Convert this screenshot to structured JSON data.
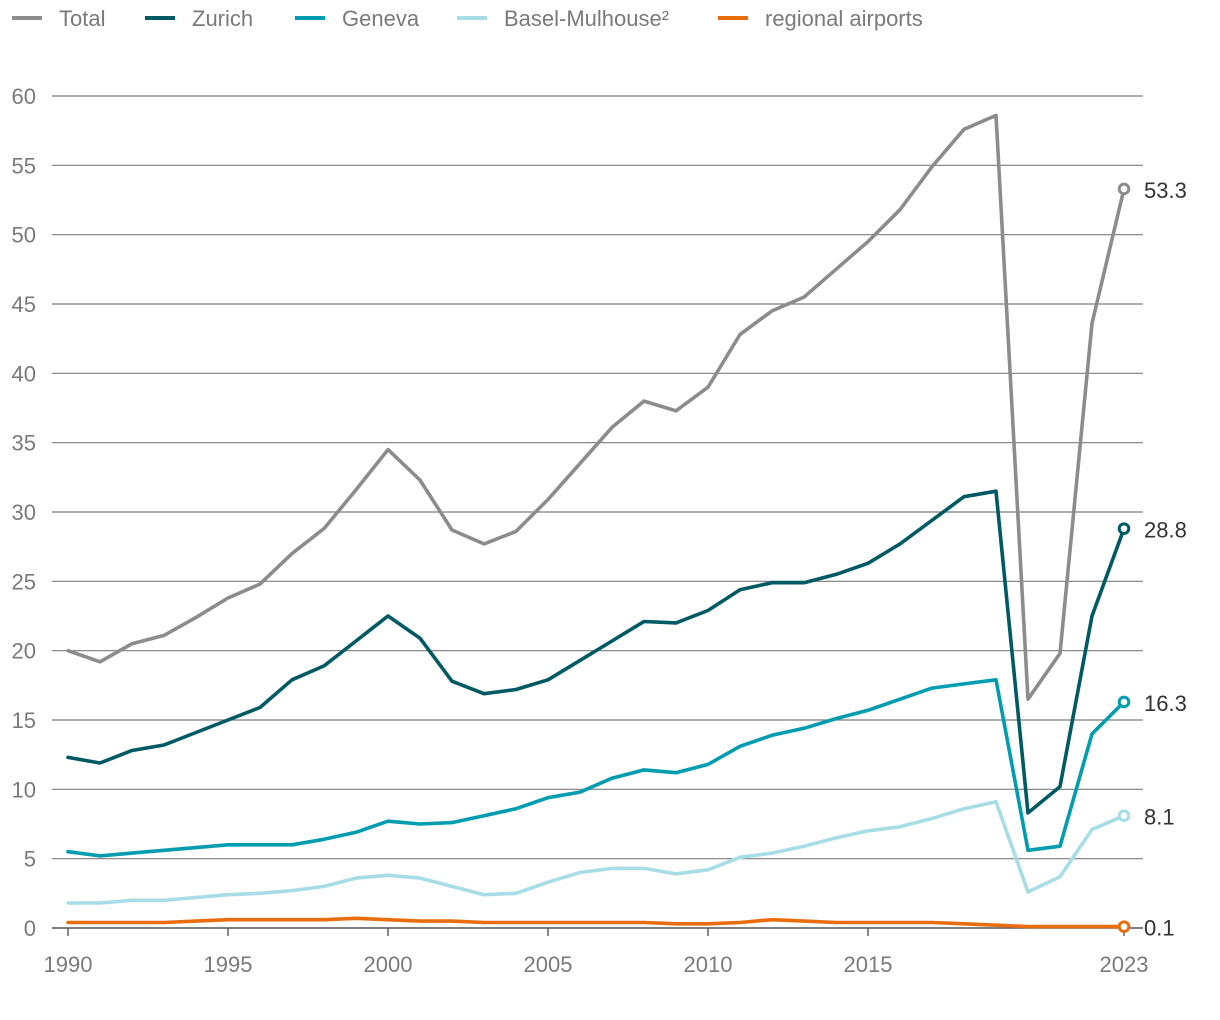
{
  "chart_data": {
    "type": "line",
    "title": "",
    "xlabel": "",
    "ylabel": "",
    "xlim": [
      1990,
      2023
    ],
    "ylim": [
      0,
      60
    ],
    "x_ticks": [
      "1990",
      "1995",
      "2000",
      "2005",
      "2010",
      "2015",
      "2023"
    ],
    "y_ticks": [
      "0",
      "5",
      "10",
      "15",
      "20",
      "25",
      "30",
      "35",
      "40",
      "45",
      "50",
      "55",
      "60"
    ],
    "grid": "horizontal",
    "legend_position": "top-left",
    "x": [
      1990,
      1991,
      1992,
      1993,
      1994,
      1995,
      1996,
      1997,
      1998,
      1999,
      2000,
      2001,
      2002,
      2003,
      2004,
      2005,
      2006,
      2007,
      2008,
      2009,
      2010,
      2011,
      2012,
      2013,
      2014,
      2015,
      2016,
      2017,
      2018,
      2019,
      2020,
      2021,
      2022,
      2023
    ],
    "series": [
      {
        "name": "Total",
        "color": "#8c8c8c",
        "end_label": "53.3",
        "values": [
          20.0,
          19.2,
          20.5,
          21.1,
          22.4,
          23.8,
          24.8,
          27.0,
          28.8,
          31.6,
          34.5,
          32.3,
          28.7,
          27.7,
          28.6,
          30.9,
          33.5,
          36.1,
          38.0,
          37.3,
          39.0,
          42.8,
          44.5,
          45.5,
          47.5,
          49.5,
          51.8,
          54.9,
          57.6,
          58.6,
          16.5,
          19.8,
          43.6,
          53.3
        ]
      },
      {
        "name": "Zurich",
        "color": "#005a64",
        "end_label": "28.8",
        "values": [
          12.3,
          11.9,
          12.8,
          13.2,
          14.1,
          15.0,
          15.9,
          17.9,
          18.9,
          20.7,
          22.5,
          20.9,
          17.8,
          16.9,
          17.2,
          17.9,
          19.3,
          20.7,
          22.1,
          22.0,
          22.9,
          24.4,
          24.9,
          24.9,
          25.5,
          26.3,
          27.7,
          29.4,
          31.1,
          31.5,
          8.3,
          10.2,
          22.5,
          28.8
        ]
      },
      {
        "name": "Geneva",
        "color": "#009cb0",
        "end_label": "16.3",
        "values": [
          5.5,
          5.2,
          5.4,
          5.6,
          5.8,
          6.0,
          6.0,
          6.0,
          6.4,
          6.9,
          7.7,
          7.5,
          7.6,
          8.1,
          8.6,
          9.4,
          9.8,
          10.8,
          11.4,
          11.2,
          11.8,
          13.1,
          13.9,
          14.4,
          15.1,
          15.7,
          16.5,
          17.3,
          17.6,
          17.9,
          5.6,
          5.9,
          14.0,
          16.3
        ]
      },
      {
        "name": "Basel-Mulhouse²",
        "color": "#a7dde5",
        "end_label": "8.1",
        "values": [
          1.8,
          1.8,
          2.0,
          2.0,
          2.2,
          2.4,
          2.5,
          2.7,
          3.0,
          3.6,
          3.8,
          3.6,
          3.0,
          2.4,
          2.5,
          3.3,
          4.0,
          4.3,
          4.3,
          3.9,
          4.2,
          5.1,
          5.4,
          5.9,
          6.5,
          7.0,
          7.3,
          7.9,
          8.6,
          9.1,
          2.6,
          3.7,
          7.1,
          8.1
        ]
      },
      {
        "name": "regional airports",
        "color": "#e96d0c",
        "end_label": "0.1",
        "values": [
          0.4,
          0.4,
          0.4,
          0.4,
          0.5,
          0.6,
          0.6,
          0.6,
          0.6,
          0.7,
          0.6,
          0.5,
          0.5,
          0.4,
          0.4,
          0.4,
          0.4,
          0.4,
          0.4,
          0.3,
          0.3,
          0.4,
          0.6,
          0.5,
          0.4,
          0.4,
          0.4,
          0.4,
          0.3,
          0.2,
          0.1,
          0.1,
          0.1,
          0.1
        ]
      }
    ]
  }
}
